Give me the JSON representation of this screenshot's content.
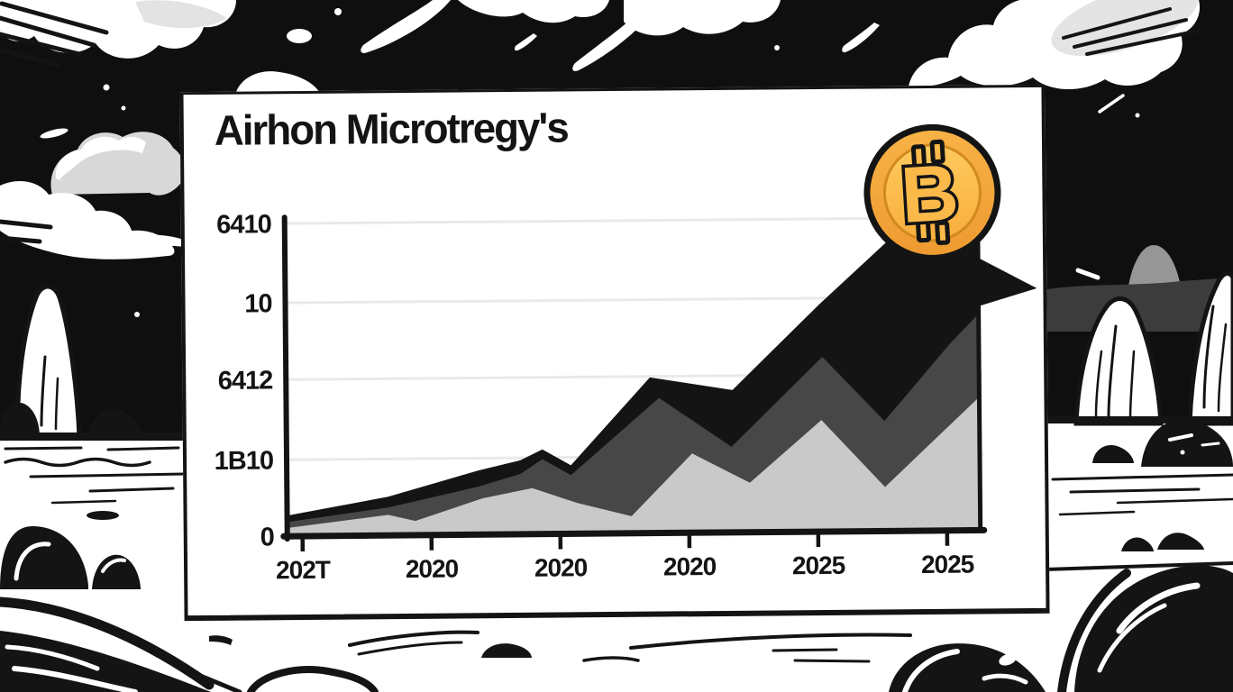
{
  "card": {
    "title": "Airhon Microtregy's"
  },
  "coin": {
    "symbol_letter": "B"
  },
  "colors": {
    "sky": "#0f0f0f",
    "ink": "#141414",
    "card_bg": "#ffffff",
    "coin_outline": "#141414",
    "coin_gold": "#F2A039",
    "coin_gold_light": "#FBB94A"
  },
  "chart_data": {
    "type": "area",
    "title": "Airhon Microtregy's",
    "grid": true,
    "legend": false,
    "grid_color": "#e9e9e9",
    "ylim": [
      0,
      1.15
    ],
    "gridline_pos": [
      0.986,
      0.736,
      0.494,
      0.241
    ],
    "y_ticks": [
      {
        "label": "6410",
        "pos": 0.986
      },
      {
        "label": "10",
        "pos": 0.736
      },
      {
        "label": "6412",
        "pos": 0.494
      },
      {
        "label": "1B10",
        "pos": 0.241
      },
      {
        "label": "0",
        "pos": 0.0
      }
    ],
    "x_ticks": [
      {
        "label": "202T",
        "pos": 0.022
      },
      {
        "label": "2020",
        "pos": 0.208
      },
      {
        "label": "2020",
        "pos": 0.394
      },
      {
        "label": "2020",
        "pos": 0.58
      },
      {
        "label": "2025",
        "pos": 0.766
      },
      {
        "label": "2025",
        "pos": 0.952
      }
    ],
    "series": [
      {
        "name": "black-area",
        "color": "#141414",
        "points": [
          [
            0,
            0.065
          ],
          [
            0.146,
            0.122
          ],
          [
            0.276,
            0.202
          ],
          [
            0.337,
            0.233
          ],
          [
            0.369,
            0.267
          ],
          [
            0.41,
            0.216
          ],
          [
            0.525,
            0.491
          ],
          [
            0.644,
            0.449
          ],
          [
            0.77,
            0.716
          ],
          [
            0.887,
            0.949
          ],
          [
            0.958,
            1.099
          ],
          [
            1,
            1.142
          ]
        ]
      },
      {
        "name": "dark-gray-area",
        "color": "#474747",
        "points": [
          [
            0,
            0.045
          ],
          [
            0.146,
            0.088
          ],
          [
            0.276,
            0.151
          ],
          [
            0.337,
            0.19
          ],
          [
            0.369,
            0.236
          ],
          [
            0.41,
            0.185
          ],
          [
            0.538,
            0.426
          ],
          [
            0.642,
            0.27
          ],
          [
            0.774,
            0.551
          ],
          [
            0.863,
            0.347
          ],
          [
            0.958,
            0.588
          ],
          [
            1,
            0.682
          ]
        ]
      },
      {
        "name": "light-gray-area",
        "color": "#c9c9c9",
        "points": [
          [
            0,
            0.026
          ],
          [
            0.146,
            0.065
          ],
          [
            0.185,
            0.045
          ],
          [
            0.282,
            0.114
          ],
          [
            0.354,
            0.145
          ],
          [
            0.419,
            0.097
          ],
          [
            0.497,
            0.054
          ],
          [
            0.585,
            0.25
          ],
          [
            0.668,
            0.156
          ],
          [
            0.772,
            0.352
          ],
          [
            0.863,
            0.139
          ],
          [
            1,
            0.42
          ]
        ]
      }
    ]
  }
}
